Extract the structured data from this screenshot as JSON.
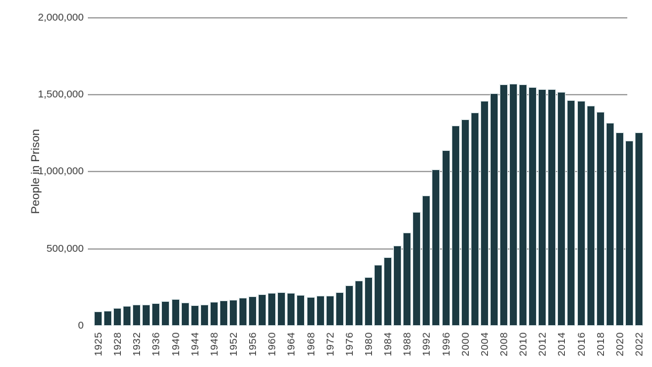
{
  "chart_data": {
    "type": "bar",
    "title": "",
    "xlabel": "",
    "ylabel": "People in Prison",
    "ylim": [
      0,
      2000000
    ],
    "grid": "horizontal",
    "legend": "none",
    "bar_color": "#1c3a42",
    "bar_stroke_color": "#d4dfe1",
    "gridline_color": "#a3a3a3",
    "text_color": "#3a3a3a",
    "yticks": [
      0,
      500000,
      1000000,
      1500000,
      2000000
    ],
    "ytick_labels": [
      "0",
      "500,000",
      "1,000,000",
      "1,500,000",
      "2,000,000"
    ],
    "xtick_labeled_years": [
      1925,
      1928,
      1932,
      1936,
      1940,
      1944,
      1948,
      1952,
      1956,
      1960,
      1964,
      1968,
      1972,
      1976,
      1980,
      1984,
      1988,
      1992,
      1996,
      2000,
      2004,
      2008,
      2010,
      2012,
      2014,
      2016,
      2018,
      2020,
      2022
    ],
    "years": [
      1925,
      1926,
      1928,
      1930,
      1932,
      1934,
      1936,
      1938,
      1940,
      1942,
      1944,
      1946,
      1948,
      1950,
      1952,
      1954,
      1956,
      1958,
      1960,
      1962,
      1964,
      1966,
      1968,
      1970,
      1972,
      1974,
      1976,
      1978,
      1980,
      1982,
      1984,
      1986,
      1988,
      1990,
      1992,
      1994,
      1996,
      1998,
      2000,
      2002,
      2004,
      2006,
      2008,
      2009,
      2010,
      2011,
      2012,
      2013,
      2014,
      2015,
      2016,
      2017,
      2018,
      2019,
      2020,
      2021,
      2022
    ],
    "values": [
      91669,
      97991,
      116390,
      129453,
      137997,
      138316,
      145038,
      160285,
      173706,
      150384,
      132456,
      140079,
      155977,
      166123,
      168233,
      182901,
      189565,
      205643,
      212953,
      218830,
      214336,
      199654,
      187914,
      196429,
      196092,
      218466,
      262833,
      294396,
      315974,
      395516,
      443398,
      522084,
      603732,
      739980,
      846277,
      1016691,
      1137722,
      1300573,
      1340000,
      1385000,
      1460000,
      1510000,
      1568000,
      1572000,
      1568000,
      1550000,
      1535000,
      1535000,
      1520000,
      1465000,
      1460000,
      1430000,
      1390000,
      1320000,
      1255000,
      1203000,
      1255000
    ]
  }
}
